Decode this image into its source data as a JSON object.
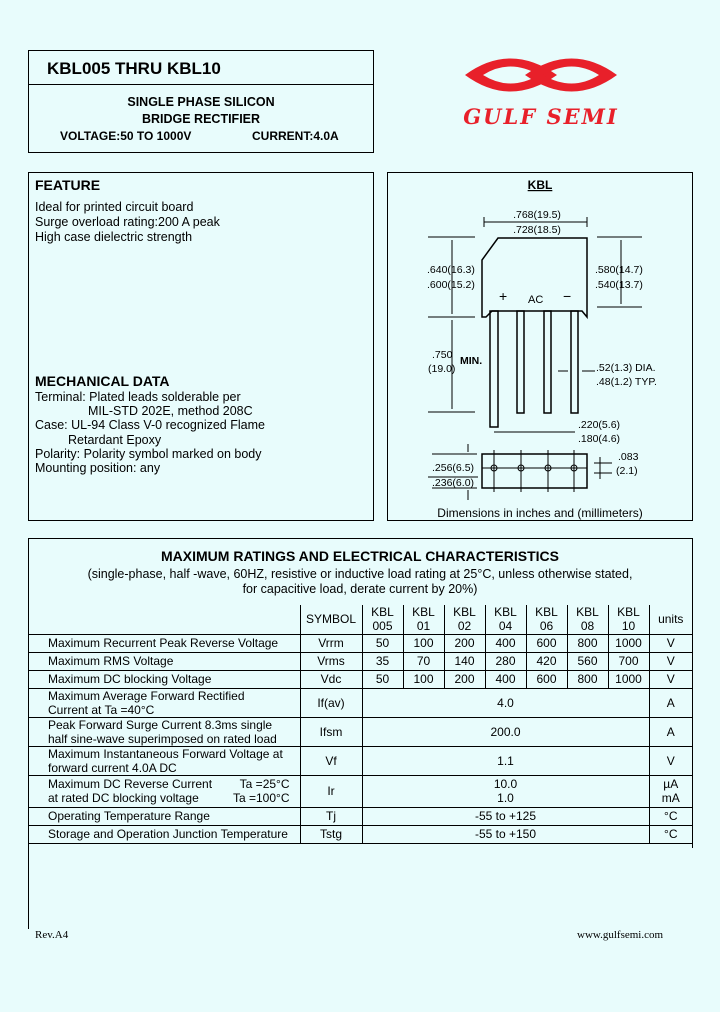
{
  "header": {
    "title": "KBL005  THRU  KBL10",
    "subtitle1": "SINGLE  PHASE  SILICON",
    "subtitle2": "BRIDGE  RECTIFIER",
    "voltage": "VOLTAGE:50  TO  1000V",
    "current": "CURRENT:4.0A"
  },
  "logo": {
    "text": "GULF SEMI",
    "color": "#e8202a"
  },
  "feature": {
    "title": "FEATURE",
    "items": [
      "Ideal for printed circuit board",
      "Surge overload rating:200 A peak",
      "High case dielectric strength"
    ]
  },
  "mechanical": {
    "title": "MECHANICAL DATA",
    "lines": [
      "Terminal: Plated leads solderable per",
      "MIL-STD 202E, method 208C",
      "Case: UL-94 Class V-0 recognized Flame",
      "Retardant Epoxy",
      "Polarity: Polarity symbol marked on body",
      "Mounting position: any"
    ]
  },
  "diagram": {
    "title": "KBL",
    "w1": ".768(19.5)",
    "w2": ".728(18.5)",
    "h1a": ".640(16.3)",
    "h1b": ".600(15.2)",
    "h2a": ".580(14.7)",
    "h2b": ".540(13.7)",
    "plus": "+",
    "ac": "AC",
    "minus": "−",
    "l1": ".750",
    "l2": "(19.0)",
    "min": "MIN.",
    "dia1": ".52(1.3) DIA.",
    "dia2": ".48(1.2) TYP.",
    "p1": ".220(5.6)",
    "p2": ".180(4.6)",
    "t1": ".256(6.5)",
    "t2": ".236(6.0)",
    "s1": ".083",
    "s2": "(2.1)",
    "caption": "Dimensions in inches and (millimeters)"
  },
  "ratings": {
    "title": "MAXIMUM  RATINGS  AND  ELECTRICAL  CHARACTERISTICS",
    "note1": "(single-phase, half -wave, 60HZ, resistive or inductive load rating at 25°C, unless otherwise stated,",
    "note2": "for capacitive load, derate current by 20%)",
    "head": {
      "symbol": "SYMBOL",
      "cols": [
        [
          "KBL",
          "005"
        ],
        [
          "KBL",
          "01"
        ],
        [
          "KBL",
          "02"
        ],
        [
          "KBL",
          "04"
        ],
        [
          "KBL",
          "06"
        ],
        [
          "KBL",
          "08"
        ],
        [
          "KBL",
          "10"
        ]
      ],
      "units": "units"
    },
    "rows": [
      {
        "d": [
          "Maximum Recurrent Peak Reverse Voltage"
        ],
        "s": "Vrrm",
        "v": [
          "50",
          "100",
          "200",
          "400",
          "600",
          "800",
          "1000"
        ],
        "u": "V"
      },
      {
        "d": [
          "Maximum RMS Voltage"
        ],
        "s": "Vrms",
        "v": [
          "35",
          "70",
          "140",
          "280",
          "420",
          "560",
          "700"
        ],
        "u": "V"
      },
      {
        "d": [
          "Maximum DC blocking Voltage"
        ],
        "s": "Vdc",
        "v": [
          "50",
          "100",
          "200",
          "400",
          "600",
          "800",
          "1000"
        ],
        "u": "V"
      },
      {
        "d": [
          "Maximum Average Forward Rectified",
          "Current at Ta =40°C"
        ],
        "s": "If(av)",
        "all": "4.0",
        "u": "A"
      },
      {
        "d": [
          "Peak Forward Surge Current 8.3ms single",
          "half sine-wave superimposed on rated load"
        ],
        "s": "Ifsm",
        "all": "200.0",
        "u": "A"
      },
      {
        "d": [
          "Maximum Instantaneous Forward Voltage at",
          "forward current 4.0A DC"
        ],
        "s": "Vf",
        "all": "1.1",
        "u": "V"
      }
    ],
    "ir": {
      "d1": "Maximum DC Reverse Current",
      "c1": "Ta =25°C",
      "d2": "at rated DC blocking voltage",
      "c2": "Ta =100°C",
      "s": "Ir",
      "v1": "10.0",
      "v2": "1.0",
      "u1": "µA",
      "u2": "mA"
    },
    "temps": [
      {
        "d": "Operating Temperature Range",
        "s": "Tj",
        "all": "-55 to +125",
        "u": "°C"
      },
      {
        "d": "Storage and Operation Junction Temperature",
        "s": "Tstg",
        "all": "-55 to +150",
        "u": "°C"
      }
    ]
  },
  "footer": {
    "rev": "Rev.A4",
    "url": "www.gulfsemi.com"
  }
}
